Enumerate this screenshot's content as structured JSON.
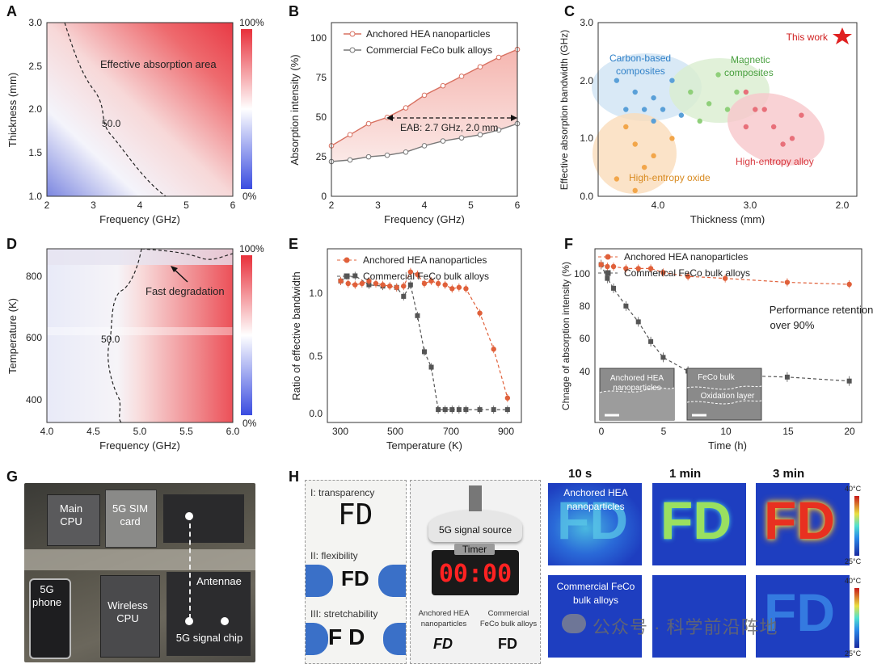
{
  "panels": {
    "A": {
      "label": "A",
      "xlabel": "Frequency (GHz)",
      "ylabel": "Thickness (mm)",
      "xticks": [
        "2",
        "3",
        "4",
        "5",
        "6"
      ],
      "yticks": [
        "1.0",
        "1.5",
        "2.0",
        "2.5",
        "3.0"
      ],
      "annotation": "Effective absorption area",
      "contour_label": "50.0",
      "colorbar": {
        "top": "100%",
        "bottom": "0%"
      }
    },
    "B": {
      "label": "B",
      "xlabel": "Frequency (GHz)",
      "ylabel": "Absorption intensity (%)",
      "xticks": [
        "2",
        "3",
        "4",
        "5",
        "6"
      ],
      "yticks": [
        "0",
        "25",
        "50",
        "75",
        "100"
      ],
      "legend": [
        "Anchored HEA nanoparticles",
        "Commercial FeCo bulk alloys"
      ],
      "annotation": "EAB: 2.7 GHz, 2.0 mm"
    },
    "C": {
      "label": "C",
      "xlabel": "Thickness (mm)",
      "ylabel": "Effective absorption bandwidth (GHz)",
      "xticks": [
        "4.0",
        "3.0",
        "2.0"
      ],
      "yticks": [
        "0.0",
        "1.0",
        "2.0",
        "3.0"
      ],
      "groups": {
        "carbon": "Carbon-based composites",
        "magnetic": "Magnetic composites",
        "oxide": "High-entropy oxide",
        "alloy": "High-entropy alloy",
        "this_work": "This work"
      }
    },
    "D": {
      "label": "D",
      "xlabel": "Frequency (GHz)",
      "ylabel": "Temperature (K)",
      "xticks": [
        "4.0",
        "4.5",
        "5.0",
        "5.5",
        "6.0"
      ],
      "yticks": [
        "400",
        "600",
        "800"
      ],
      "annotation": "Fast degradation",
      "contour_label": "50.0",
      "colorbar": {
        "top": "100%",
        "bottom": "0%"
      }
    },
    "E": {
      "label": "E",
      "xlabel": "Temperature (K)",
      "ylabel": "Ratio of effective bandwidth",
      "xticks": [
        "300",
        "500",
        "700",
        "900"
      ],
      "yticks": [
        "0.0",
        "0.5",
        "1.0"
      ],
      "legend": [
        "Anchored HEA nanoparticles",
        "Commercial FeCo bulk alloys"
      ]
    },
    "F": {
      "label": "F",
      "xlabel": "Time (h)",
      "ylabel": "Chnage of absorption intensity (%)",
      "xticks": [
        "0",
        "5",
        "10",
        "15",
        "20"
      ],
      "yticks": [
        "40",
        "60",
        "80",
        "100"
      ],
      "legend": [
        "Anchored HEA nanoparticles",
        "Commerical FeCo bulk alloys"
      ],
      "annotation_line1": "Performance retention",
      "annotation_line2": "over 90%",
      "inset1_line1": "Anchored HEA",
      "inset1_line2": "nanoparticles",
      "inset2_line1": "FeCo bulk",
      "inset2_line2": "Oxidation layer"
    },
    "G": {
      "label": "G",
      "main_cpu": "Main CPU",
      "sim_card": "5G SIM card",
      "antennae": "Antennae",
      "phone": "5G phone",
      "wireless_cpu": "Wireless CPU",
      "signal_chip": "5G signal chip"
    },
    "H": {
      "label": "H",
      "transparency": "I: transparency",
      "flexibility": "II: flexibility",
      "stretchability": "III: stretchability",
      "fd_text": "FD",
      "signal_source": "5G signal source",
      "timer_label": "Timer",
      "timer_value": "00:00",
      "anchored_label": "Anchored HEA nanoparticles",
      "commercial_label": "Commercial FeCo bulk alloys",
      "times": [
        "10 s",
        "1 min",
        "3 min"
      ],
      "row1_label": "Anchored HEA nanoparticles",
      "row2_label": "Commercial FeCo bulk alloys",
      "cbar_top": "40°C",
      "cbar_bottom": "25°C"
    }
  },
  "watermark": "公众号 · 科学前沿阵地",
  "chart_data": [
    {
      "type": "line",
      "panel": "B",
      "xlabel": "Frequency (GHz)",
      "ylabel": "Absorption intensity (%)",
      "xlim": [
        2,
        6
      ],
      "ylim": [
        0,
        110
      ],
      "x": [
        2.0,
        2.4,
        2.8,
        3.2,
        3.6,
        4.0,
        4.4,
        4.8,
        5.2,
        5.6,
        6.0
      ],
      "series": [
        {
          "name": "Anchored HEA nanoparticles",
          "values": [
            32,
            39,
            46,
            50,
            56,
            64,
            70,
            76,
            82,
            88,
            93
          ]
        },
        {
          "name": "Commercial FeCo bulk alloys",
          "values": [
            22,
            23,
            25,
            26,
            28,
            32,
            35,
            37,
            39,
            42,
            46
          ]
        }
      ]
    },
    {
      "type": "scatter",
      "panel": "C",
      "xlabel": "Thickness (mm)",
      "ylabel": "Effective absorption bandwidth (GHz)",
      "xlim": [
        4.6,
        1.8
      ],
      "ylim": [
        0,
        3.0
      ],
      "series": [
        {
          "name": "Carbon-based composites",
          "color": "#5aa0d8",
          "points": [
            [
              4.4,
              2.0
            ],
            [
              4.2,
              1.8
            ],
            [
              4.0,
              1.7
            ],
            [
              3.9,
              1.5
            ],
            [
              3.8,
              2.0
            ],
            [
              4.3,
              1.5
            ],
            [
              4.0,
              1.3
            ],
            [
              3.7,
              1.4
            ],
            [
              4.1,
              1.5
            ]
          ]
        },
        {
          "name": "Magnetic composites",
          "color": "#8fcf7a",
          "points": [
            [
              3.6,
              1.8
            ],
            [
              3.4,
              1.6
            ],
            [
              3.3,
              2.1
            ],
            [
              3.1,
              1.8
            ],
            [
              3.2,
              1.5
            ],
            [
              3.5,
              1.3
            ]
          ]
        },
        {
          "name": "High-entropy oxide",
          "color": "#f2a64a",
          "points": [
            [
              4.3,
              1.2
            ],
            [
              4.2,
              0.9
            ],
            [
              4.1,
              0.5
            ],
            [
              4.0,
              0.7
            ],
            [
              4.4,
              0.3
            ],
            [
              3.8,
              1.0
            ],
            [
              4.2,
              0.1
            ]
          ]
        },
        {
          "name": "High-entropy alloy",
          "color": "#e8707a",
          "points": [
            [
              3.0,
              1.8
            ],
            [
              2.8,
              1.5
            ],
            [
              2.7,
              1.2
            ],
            [
              2.6,
              0.9
            ],
            [
              2.5,
              1.0
            ],
            [
              2.9,
              1.5
            ],
            [
              3.0,
              1.2
            ],
            [
              2.4,
              1.4
            ]
          ]
        },
        {
          "name": "This work",
          "color": "#e02020",
          "points": [
            [
              2.0,
              2.7
            ]
          ]
        }
      ]
    },
    {
      "type": "line",
      "panel": "E",
      "xlabel": "Temperature (K)",
      "ylabel": "Ratio of effective bandwidth",
      "xlim": [
        250,
        950
      ],
      "ylim": [
        -0.1,
        1.25
      ],
      "series": [
        {
          "name": "Anchored HEA nanoparticles",
          "x": [
            298,
            325,
            350,
            375,
            400,
            425,
            450,
            475,
            500,
            525,
            550,
            575,
            600,
            625,
            650,
            675,
            700,
            725,
            750,
            800,
            850,
            900
          ],
          "values": [
            1.0,
            0.98,
            0.97,
            0.98,
            1.0,
            0.98,
            0.97,
            0.96,
            0.95,
            0.96,
            1.07,
            1.05,
            0.98,
            1.0,
            0.98,
            0.97,
            0.94,
            0.95,
            0.94,
            0.75,
            0.47,
            0.09
          ]
        },
        {
          "name": "Commercial FeCo bulk alloys",
          "x": [
            298,
            350,
            400,
            450,
            500,
            525,
            550,
            575,
            600,
            625,
            650,
            675,
            700,
            725,
            750,
            800,
            850,
            900
          ],
          "values": [
            1.0,
            1.04,
            0.97,
            0.96,
            0.95,
            0.88,
            0.97,
            0.73,
            0.45,
            0.33,
            0.0,
            0.0,
            0.0,
            0.0,
            0.0,
            0.0,
            0.0,
            0.0
          ]
        }
      ]
    },
    {
      "type": "line",
      "panel": "F",
      "xlabel": "Time (h)",
      "ylabel": "Chnage of absorption intensity (%)",
      "xlim": [
        -0.5,
        21
      ],
      "ylim": [
        20,
        108
      ],
      "series": [
        {
          "name": "Anchored HEA nanoparticles",
          "x": [
            0,
            0.5,
            1,
            2,
            3,
            4,
            5,
            7,
            10,
            15,
            20
          ],
          "values": [
            100,
            99,
            99,
            98,
            98,
            98,
            96,
            94,
            93,
            91,
            90
          ]
        },
        {
          "name": "Commerical FeCo bulk alloys",
          "x": [
            0,
            0.5,
            1,
            2,
            3,
            4,
            5,
            7,
            10,
            15,
            20
          ],
          "values": [
            100,
            93,
            88,
            79,
            71,
            61,
            53,
            46,
            44,
            43,
            41
          ]
        }
      ]
    }
  ]
}
